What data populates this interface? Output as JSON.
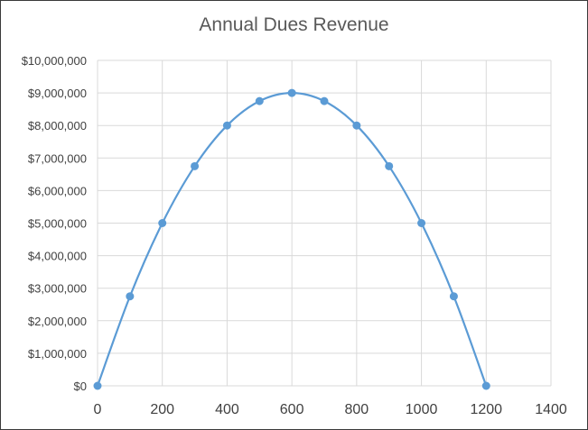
{
  "chart_data": {
    "type": "scatter",
    "title": "Annual Dues Revenue",
    "xlabel": "",
    "ylabel": "",
    "xlim": [
      0,
      1400
    ],
    "ylim": [
      0,
      10000000
    ],
    "x_ticks": [
      0,
      200,
      400,
      600,
      800,
      1000,
      1200,
      1400
    ],
    "x_tick_labels": [
      "0",
      "200",
      "400",
      "600",
      "800",
      "1000",
      "1200",
      "1400"
    ],
    "y_ticks": [
      0,
      1000000,
      2000000,
      3000000,
      4000000,
      5000000,
      6000000,
      7000000,
      8000000,
      9000000,
      10000000
    ],
    "y_tick_labels": [
      "$0",
      "$1,000,000",
      "$2,000,000",
      "$3,000,000",
      "$4,000,000",
      "$5,000,000",
      "$6,000,000",
      "$7,000,000",
      "$8,000,000",
      "$9,000,000",
      "$10,000,000"
    ],
    "grid": true,
    "legend": "none",
    "line_style": "smooth",
    "series": [
      {
        "color": "#5b9bd5",
        "x": [
          0,
          100,
          200,
          300,
          400,
          500,
          600,
          700,
          800,
          900,
          1000,
          1100,
          1200
        ],
        "y": [
          0,
          2750000,
          5000000,
          6750000,
          8000000,
          8750000,
          9000000,
          8750000,
          8000000,
          6750000,
          5000000,
          2750000,
          0
        ]
      }
    ]
  }
}
